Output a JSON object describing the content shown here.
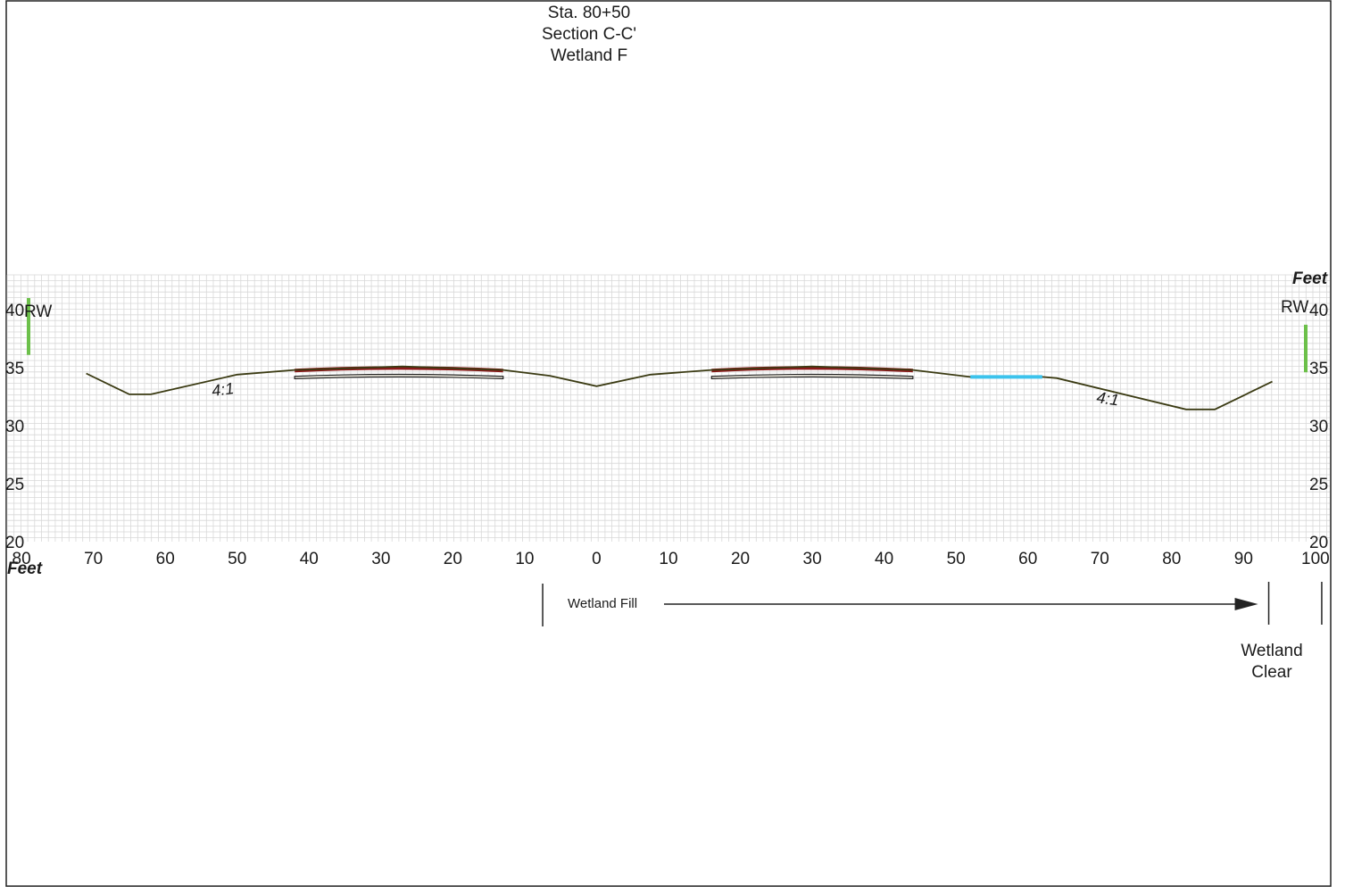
{
  "title_lines": [
    "Sta. 80+50",
    "Section C-C'",
    "Wetland F"
  ],
  "axes": {
    "x_unit_label": "Feet",
    "y_unit_label": "Feet",
    "x_ticks_left": [
      "80",
      "70",
      "60",
      "50",
      "40",
      "30",
      "20",
      "10"
    ],
    "x_ticks_right": [
      "0",
      "10",
      "20",
      "30",
      "40",
      "50",
      "60",
      "70",
      "80",
      "90",
      "100"
    ],
    "x_range": [
      -82,
      102
    ],
    "y_ticks_left": [
      "40",
      "35",
      "30",
      "25",
      "20"
    ],
    "y_ticks_right": [
      "40",
      "35",
      "30",
      "25",
      "20"
    ],
    "y_range": [
      20,
      43
    ],
    "grid": true
  },
  "labels": {
    "right_of_way_left": "RW",
    "right_of_way_right": "RW",
    "slope_left": "4:1",
    "slope_right": "4:1",
    "wetland_fill": "Wetland Fill",
    "wetland_clear_line1": "Wetland",
    "wetland_clear_line2": "Clear"
  },
  "colors": {
    "ground_line": "#3a3a12",
    "pavement": "#8b1a1a",
    "wetland_mark": "#3cc3ec",
    "right_of_way": "#6cc04a",
    "grid": "#d8d8d8"
  },
  "chart_data": {
    "type": "line",
    "series": [
      {
        "points": [
          [
            -71,
            34.5
          ],
          [
            -65,
            32.7
          ],
          [
            -62,
            32.7
          ],
          [
            -50,
            34.4
          ],
          [
            -42,
            34.8
          ],
          [
            -27,
            35.1
          ],
          [
            -13,
            34.8
          ],
          [
            -6.5,
            34.3
          ],
          [
            0,
            33.4
          ],
          [
            7.5,
            34.4
          ],
          [
            16,
            34.8
          ],
          [
            30,
            35.1
          ],
          [
            44,
            34.8
          ],
          [
            52,
            34.2
          ],
          [
            62,
            34.2
          ],
          [
            64,
            34.1
          ],
          [
            82,
            31.4
          ],
          [
            86,
            31.4
          ],
          [
            94,
            33.8
          ]
        ]
      }
    ],
    "pavement_segments": [
      [
        -42,
        -13
      ],
      [
        16,
        44
      ]
    ],
    "wetland_mark_x": [
      52,
      62
    ],
    "right_of_way_x": [
      -81,
      101
    ],
    "wetland_fill_range_x": [
      -7.5,
      93.5
    ],
    "wetland_clear_x": 101
  }
}
